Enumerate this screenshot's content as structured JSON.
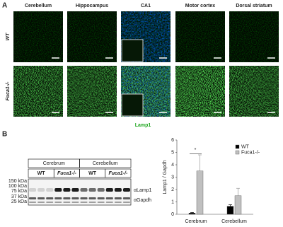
{
  "panel_a": {
    "label": "A",
    "columns": [
      "Cerebellum",
      "Hippocampus",
      "CA1",
      "Motor cortex",
      "Dorsal striatum"
    ],
    "rows": [
      "WT",
      "Fuca1-/-"
    ],
    "stain": "Lamp1"
  },
  "panel_b": {
    "label": "B",
    "blot": {
      "groups": [
        "Cerebrum",
        "Cerebellum"
      ],
      "genotypes": [
        "WT",
        "Fuca1-/-",
        "WT",
        "Fuca1-/-"
      ],
      "markers": [
        "150 kDa",
        "100 kDa",
        "75 kDa",
        "37 kDa",
        "25 kDa"
      ],
      "antibodies": [
        "αLamp1",
        "αGapdh"
      ]
    }
  },
  "chart_data": {
    "type": "bar",
    "ylabel": "Lamp1 / Gapdh",
    "categories": [
      "Cerebrum",
      "Cerebellum"
    ],
    "series": [
      {
        "name": "WT",
        "color": "#000000",
        "values": [
          0.1,
          0.65
        ],
        "errors": [
          0.05,
          0.12
        ]
      },
      {
        "name": "Fuca1-/-",
        "color": "#c0c0c0",
        "values": [
          3.5,
          1.5
        ],
        "errors": [
          1.3,
          0.6
        ]
      }
    ],
    "ylim": [
      0,
      6
    ],
    "yticks": [
      0,
      1,
      2,
      3,
      4,
      5,
      6
    ],
    "annotations": [
      "*"
    ]
  }
}
